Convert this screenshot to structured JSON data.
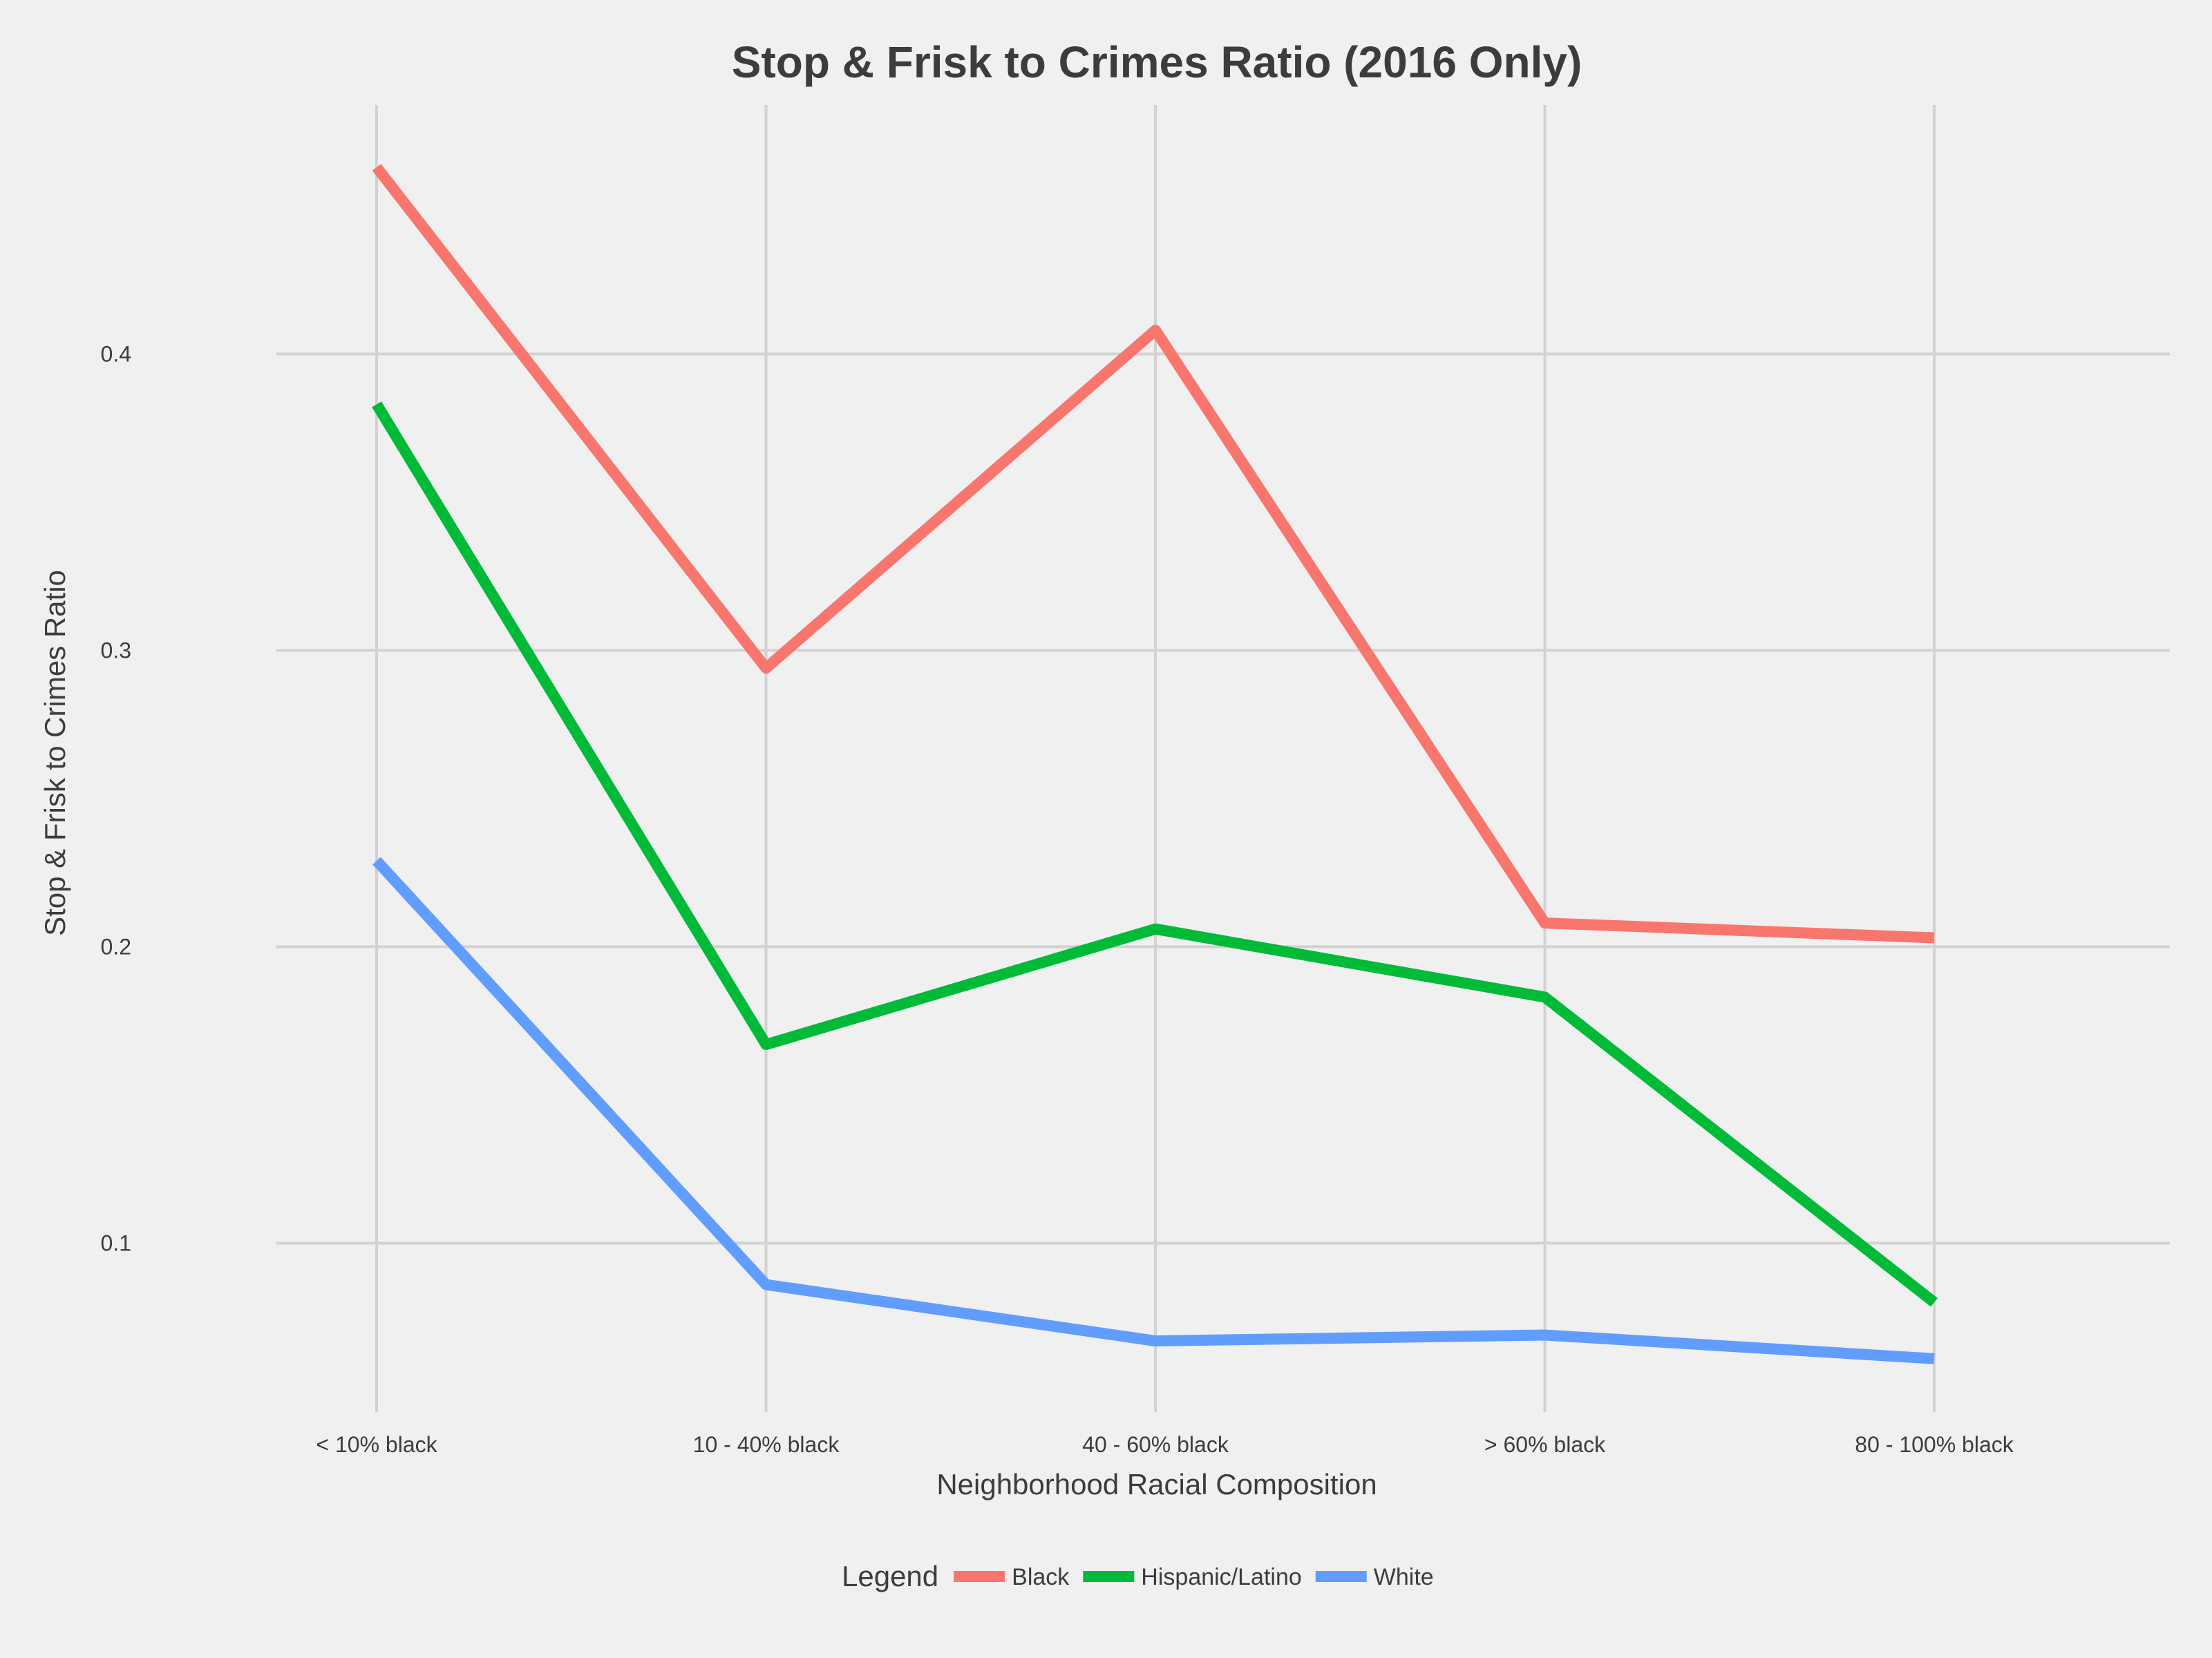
{
  "chart_data": {
    "type": "line",
    "title": "Stop & Frisk to Crimes Ratio (2016 Only)",
    "xlabel": "Neighborhood Racial Composition",
    "ylabel": "Stop & Frisk to Crimes Ratio",
    "categories": [
      "< 10% black",
      "10 - 40% black",
      "40 - 60% black",
      "> 60% black",
      "80 - 100% black"
    ],
    "ylim": [
      0.043,
      0.484
    ],
    "yticks": [
      0.1,
      0.2,
      0.3,
      0.4
    ],
    "ytick_labels": [
      "0.1",
      "0.2",
      "0.3",
      "0.4"
    ],
    "grid": true,
    "legend": {
      "title": "Legend",
      "position": "bottom"
    },
    "series": [
      {
        "name": "Black",
        "color": "#f8766d",
        "values": [
          0.463,
          0.294,
          0.408,
          0.208,
          0.203
        ]
      },
      {
        "name": "Hispanic/Latino",
        "color": "#00ba38",
        "values": [
          0.383,
          0.167,
          0.206,
          0.183,
          0.08
        ]
      },
      {
        "name": "White",
        "color": "#619cff",
        "values": [
          0.229,
          0.086,
          0.067,
          0.069,
          0.061
        ]
      }
    ]
  }
}
